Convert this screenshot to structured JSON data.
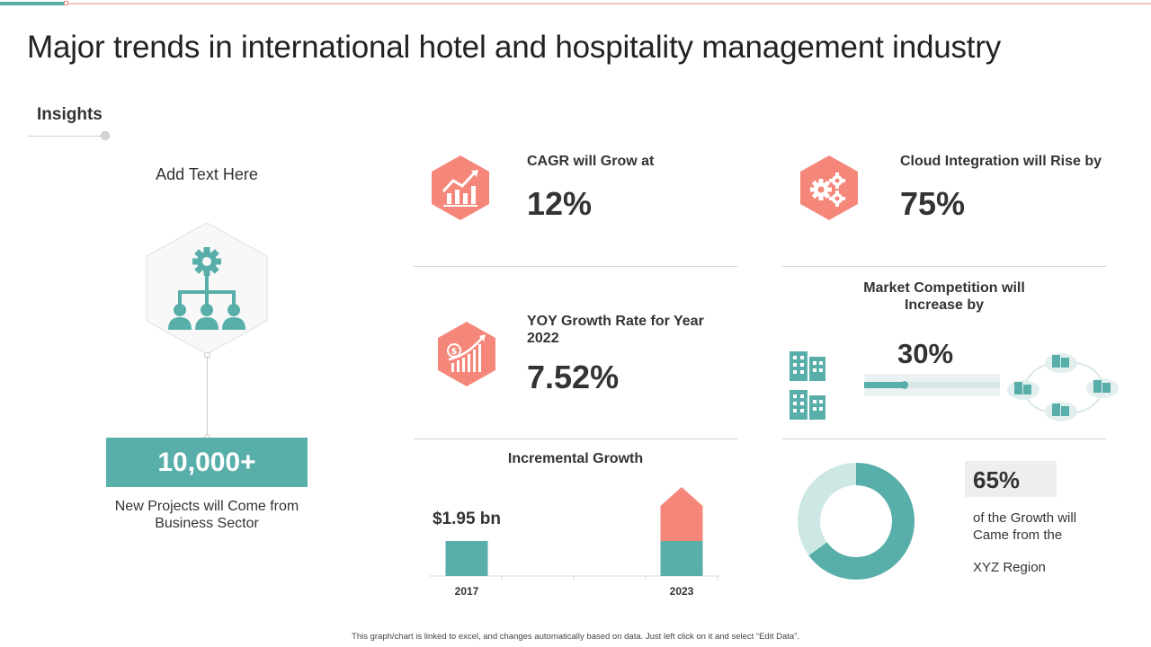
{
  "title": "Major trends in international hotel and hospitality management industry",
  "insights": {
    "heading": "Insights",
    "add_text": "Add Text Here",
    "icon": "org-chart-gear-icon",
    "big_number": "10,000+",
    "caption": "New Projects will Come from Business Sector"
  },
  "stats": [
    {
      "label": "CAGR will Grow at",
      "value": "12%",
      "icon": "growth-chart-icon"
    },
    {
      "label": "Cloud Integration will Rise by",
      "value": "75%",
      "icon": "gears-icon"
    },
    {
      "label": "YOY Growth Rate for Year 2022",
      "value": "7.52%",
      "icon": "dollar-growth-icon"
    }
  ],
  "market_competition": {
    "title": "Market Competition will Increase by",
    "value": "30%",
    "fraction": 0.3,
    "icons": [
      "buildings-icon",
      "network-icon"
    ]
  },
  "region": {
    "value": "65%",
    "fraction": 0.65,
    "caption": "of the Growth will Came from the",
    "caption2": "XYZ Region"
  },
  "colors": {
    "teal": "#58aea9",
    "teal_light": "#cde7e5",
    "salmon": "#f4877a"
  },
  "chart_data": {
    "type": "bar",
    "title": "Incremental Growth",
    "categories": [
      "2017",
      "2023"
    ],
    "series": [
      {
        "values": [
          1.95,
          1.95
        ]
      },
      {
        "values": [
          0,
          3.0
        ]
      }
    ],
    "data_labels": [
      "$1.95 bn"
    ],
    "ylim": [
      0,
      5.0
    ],
    "grid": false,
    "legend": "none"
  },
  "footnote": "This graph/chart is linked to excel, and changes automatically based on data. Just left click on it and select “Edit Data”."
}
